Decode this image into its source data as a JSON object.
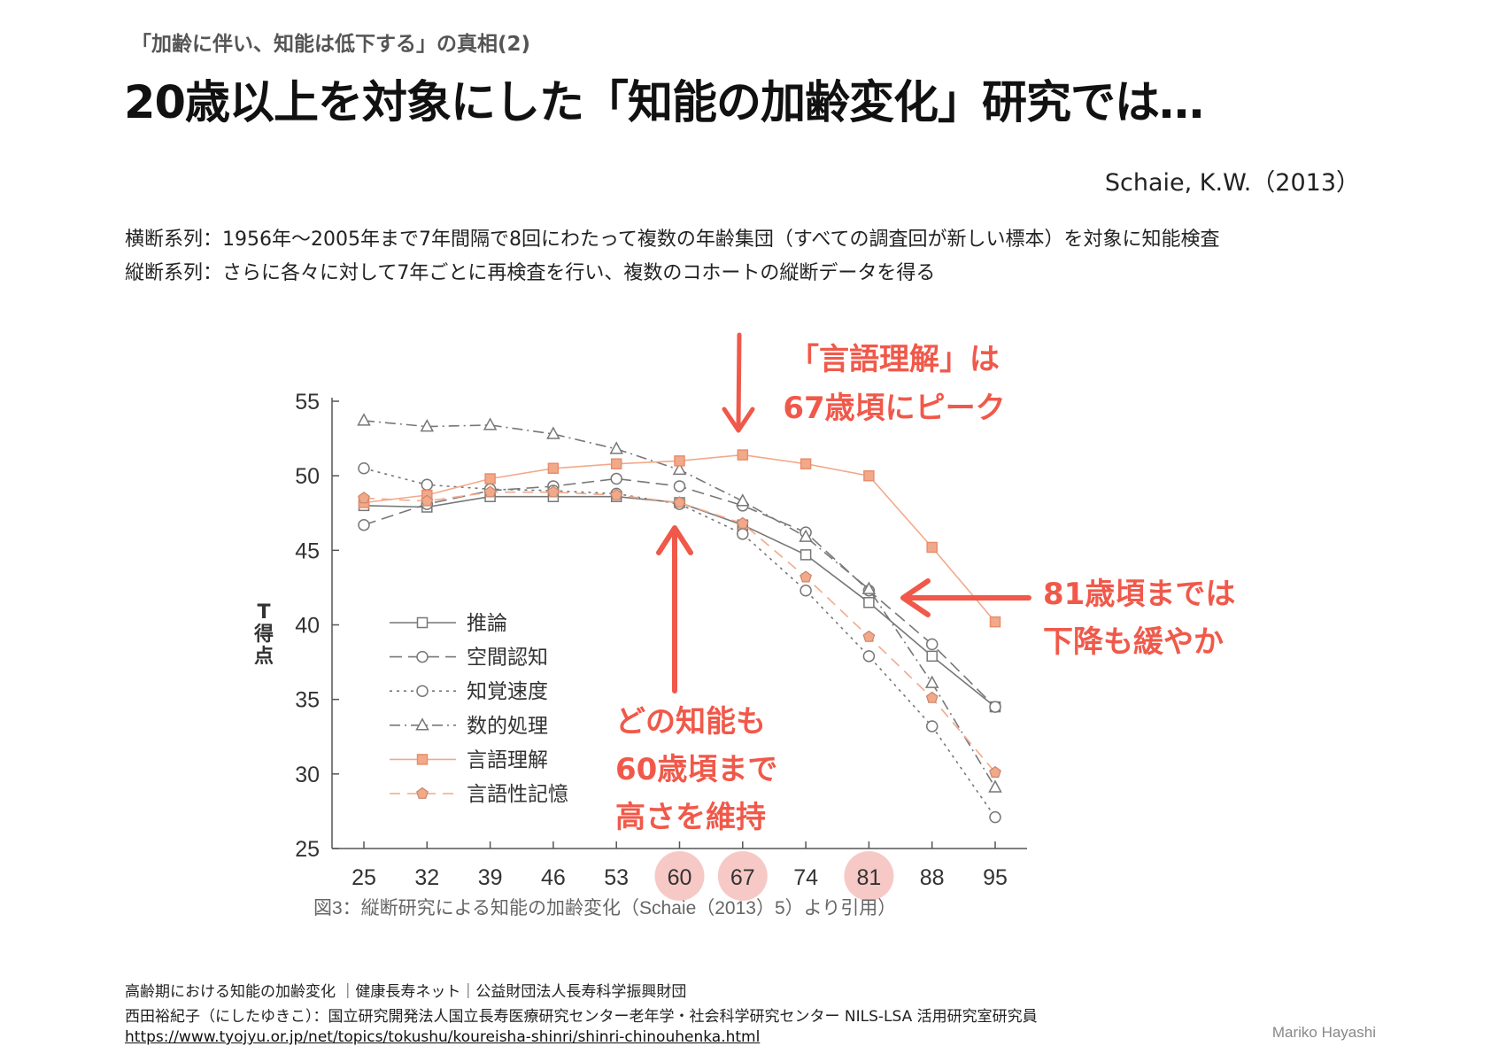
{
  "header": {
    "subtitle": "「加齢に伴い、知能は低下する」の真相(2)",
    "title": "20歳以上を対象にした「知能の加齢変化」研究では…",
    "citation": "Schaie, K.W.（2013）"
  },
  "description": {
    "line1": "横断系列：1956年～2005年まで7年間隔で8回にわたって複数の年齢集団（すべての調査回が新しい標本）を対象に知能検査",
    "line2": "縦断系列：さらに各々に対して7年ごとに再検査を行い、複数のコホートの縦断データを得る"
  },
  "annotations": {
    "top": [
      "「言語理解」は",
      "67歳頃にピーク"
    ],
    "right": [
      "81歳頃までは",
      "下降も緩やか"
    ],
    "bottom": [
      "どの知能も",
      "60歳頃まで",
      "高さを維持"
    ],
    "color": "#f0594a"
  },
  "chart_data": {
    "type": "line",
    "x": [
      25,
      32,
      39,
      46,
      53,
      60,
      67,
      74,
      81,
      88,
      95
    ],
    "ylim": [
      25,
      55
    ],
    "yticks": [
      25,
      30,
      35,
      40,
      45,
      50,
      55
    ],
    "ylabel": "T得点",
    "caption": "図3：縦断研究による知能の加齢変化（Schaie（2013）5）より引用）",
    "highlighted_x": [
      60,
      67,
      81
    ],
    "highlight_color": "#f6c9c6",
    "legend_position": "center-left",
    "series": [
      {
        "name": "推論",
        "marker": "square",
        "dash": "solid",
        "color": "#666666",
        "values": [
          48.0,
          47.9,
          48.6,
          48.6,
          48.6,
          48.2,
          46.7,
          44.7,
          41.5,
          37.9,
          34.5
        ]
      },
      {
        "name": "空間認知",
        "marker": "circle",
        "dash": "longdash",
        "color": "#666666",
        "values": [
          46.7,
          48.1,
          49.0,
          49.3,
          49.8,
          49.3,
          48.0,
          46.2,
          42.3,
          38.7,
          34.5
        ]
      },
      {
        "name": "知覚速度",
        "marker": "circle",
        "dash": "dotted",
        "color": "#666666",
        "values": [
          50.5,
          49.4,
          49.1,
          49.0,
          48.8,
          48.1,
          46.1,
          42.3,
          37.9,
          33.2,
          27.1
        ]
      },
      {
        "name": "数的処理",
        "marker": "triangle",
        "dash": "dashdot",
        "color": "#666666",
        "values": [
          53.7,
          53.3,
          53.4,
          52.8,
          51.8,
          50.4,
          48.3,
          45.9,
          42.4,
          36.1,
          29.1
        ]
      },
      {
        "name": "言語理解",
        "marker": "square",
        "dash": "solid",
        "color": "#f2a98a",
        "values": [
          48.2,
          48.7,
          49.8,
          50.5,
          50.8,
          51.0,
          51.4,
          50.8,
          50.0,
          45.2,
          40.2
        ]
      },
      {
        "name": "言語性記憶",
        "marker": "pentagon",
        "dash": "dashed",
        "color": "#f2a98a",
        "values": [
          48.5,
          48.3,
          48.9,
          48.9,
          48.7,
          48.2,
          46.8,
          43.2,
          39.2,
          35.1,
          30.1
        ]
      }
    ]
  },
  "footer": {
    "line1": "高齢期における知能の加齢変化 ｜健康長寿ネット｜公益財団法人長寿科学振興財団",
    "line2": "西田裕紀子（にしたゆきこ）：国立研究開発法人国立長寿医療研究センター老年学・社会科学研究センター NILS-LSA 活用研究室研究員",
    "url": "https://www.tyojyu.or.jp/net/topics/tokushu/koureisha-shinri/shinri-chinouhenka.html",
    "author": "Mariko Hayashi"
  }
}
